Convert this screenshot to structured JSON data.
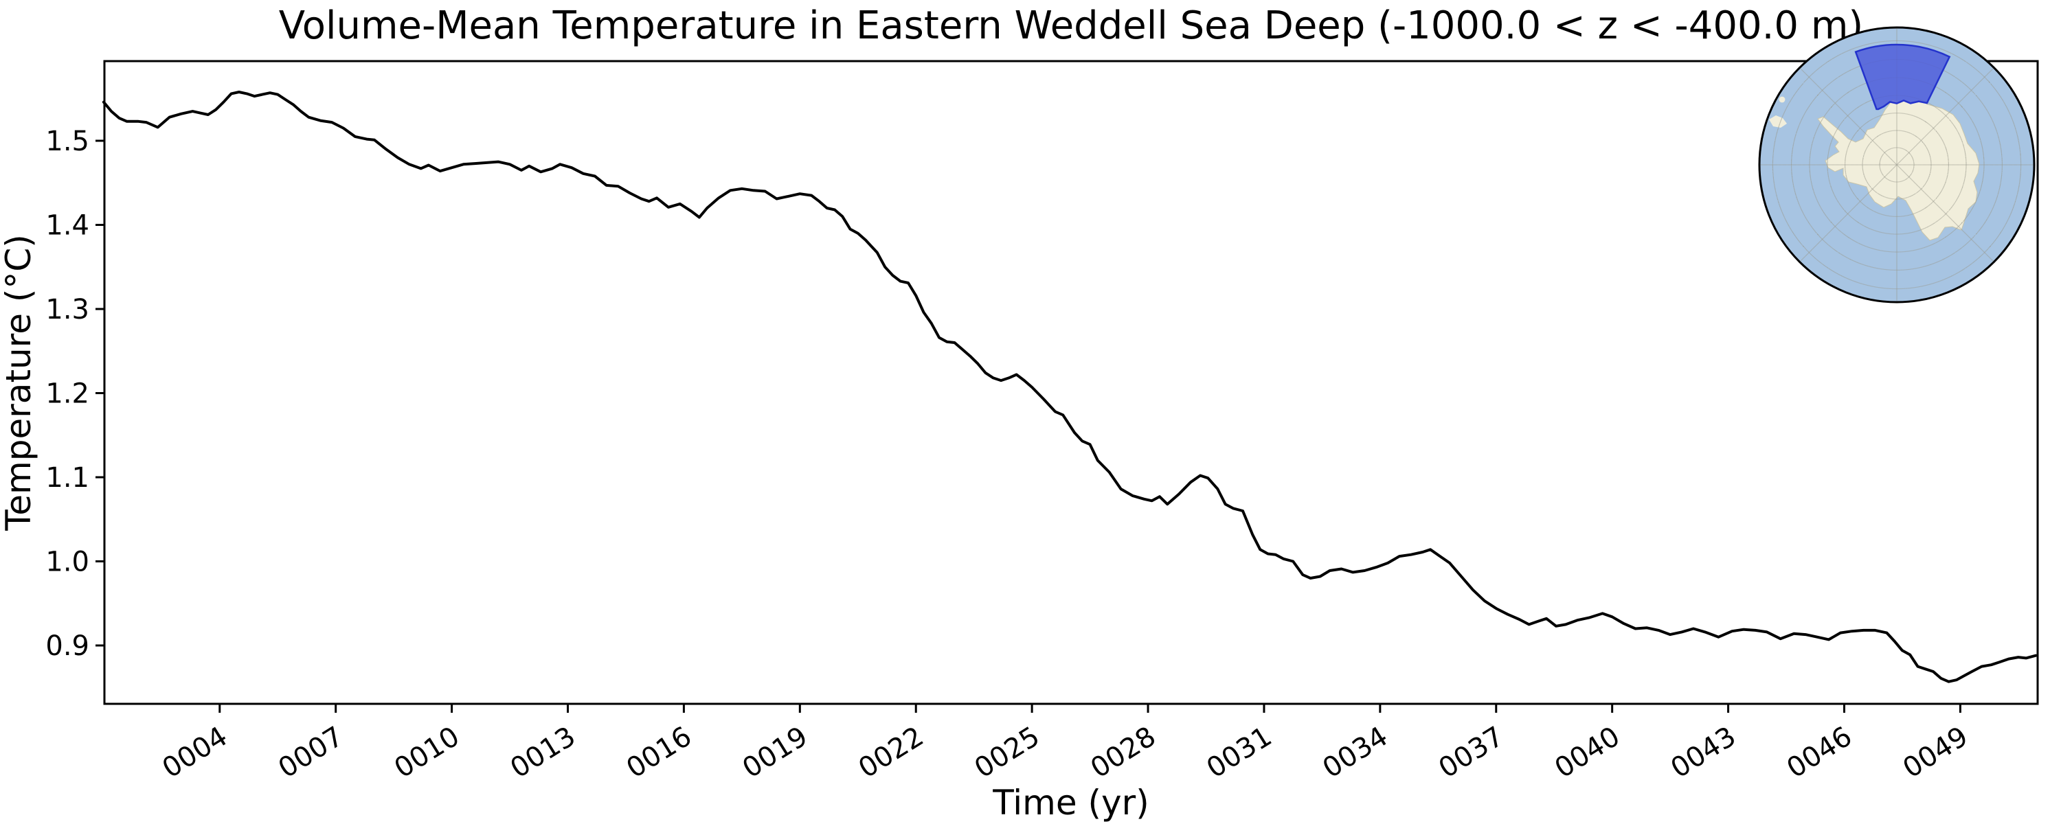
{
  "figure": {
    "background": "#ffffff"
  },
  "chart_data": {
    "type": "line",
    "title": "Volume-Mean Temperature in Eastern Weddell Sea Deep (-1000.0 < z < -400.0 m)",
    "xlabel": "Time (yr)",
    "ylabel": "Temperature (°C)",
    "xlim": [
      1.02,
      51.0
    ],
    "ylim": [
      0.8306,
      1.5947
    ],
    "grid": false,
    "legend": "none",
    "line_color": "#000000",
    "line_width": 4,
    "x_ticks": [
      {
        "value": 4,
        "label": "0004"
      },
      {
        "value": 7,
        "label": "0007"
      },
      {
        "value": 10,
        "label": "0010"
      },
      {
        "value": 13,
        "label": "0013"
      },
      {
        "value": 16,
        "label": "0016"
      },
      {
        "value": 19,
        "label": "0019"
      },
      {
        "value": 22,
        "label": "0022"
      },
      {
        "value": 25,
        "label": "0025"
      },
      {
        "value": 28,
        "label": "0028"
      },
      {
        "value": 31,
        "label": "0031"
      },
      {
        "value": 34,
        "label": "0034"
      },
      {
        "value": 37,
        "label": "0037"
      },
      {
        "value": 40,
        "label": "0040"
      },
      {
        "value": 43,
        "label": "0043"
      },
      {
        "value": 46,
        "label": "0046"
      },
      {
        "value": 49,
        "label": "0049"
      }
    ],
    "y_ticks": [
      {
        "value": 0.9,
        "label": "0.9"
      },
      {
        "value": 1.0,
        "label": "1.0"
      },
      {
        "value": 1.1,
        "label": "1.1"
      },
      {
        "value": 1.2,
        "label": "1.2"
      },
      {
        "value": 1.3,
        "label": "1.3"
      },
      {
        "value": 1.4,
        "label": "1.4"
      },
      {
        "value": 1.5,
        "label": "1.5"
      }
    ],
    "series": [
      {
        "name": "volume-mean temperature",
        "points": [
          [
            1.0,
            1.546
          ],
          [
            1.2,
            1.535
          ],
          [
            1.4,
            1.527
          ],
          [
            1.6,
            1.523
          ],
          [
            1.9,
            1.523
          ],
          [
            2.1,
            1.522
          ],
          [
            2.4,
            1.516
          ],
          [
            2.7,
            1.528
          ],
          [
            3.0,
            1.532
          ],
          [
            3.3,
            1.535
          ],
          [
            3.5,
            1.533
          ],
          [
            3.7,
            1.531
          ],
          [
            3.9,
            1.537
          ],
          [
            4.1,
            1.546
          ],
          [
            4.3,
            1.556
          ],
          [
            4.5,
            1.558
          ],
          [
            4.7,
            1.556
          ],
          [
            4.9,
            1.553
          ],
          [
            5.1,
            1.555
          ],
          [
            5.3,
            1.557
          ],
          [
            5.5,
            1.555
          ],
          [
            5.7,
            1.549
          ],
          [
            5.9,
            1.543
          ],
          [
            6.1,
            1.535
          ],
          [
            6.3,
            1.528
          ],
          [
            6.6,
            1.524
          ],
          [
            6.9,
            1.522
          ],
          [
            7.2,
            1.515
          ],
          [
            7.5,
            1.505
          ],
          [
            7.8,
            1.502
          ],
          [
            8.0,
            1.501
          ],
          [
            8.3,
            1.49
          ],
          [
            8.6,
            1.48
          ],
          [
            8.9,
            1.472
          ],
          [
            9.2,
            1.467
          ],
          [
            9.4,
            1.471
          ],
          [
            9.7,
            1.464
          ],
          [
            10.0,
            1.468
          ],
          [
            10.3,
            1.472
          ],
          [
            10.6,
            1.473
          ],
          [
            10.9,
            1.474
          ],
          [
            11.2,
            1.475
          ],
          [
            11.5,
            1.472
          ],
          [
            11.8,
            1.465
          ],
          [
            12.0,
            1.47
          ],
          [
            12.3,
            1.463
          ],
          [
            12.6,
            1.467
          ],
          [
            12.8,
            1.472
          ],
          [
            13.1,
            1.468
          ],
          [
            13.4,
            1.461
          ],
          [
            13.7,
            1.458
          ],
          [
            14.0,
            1.447
          ],
          [
            14.3,
            1.446
          ],
          [
            14.6,
            1.438
          ],
          [
            14.9,
            1.431
          ],
          [
            15.1,
            1.428
          ],
          [
            15.3,
            1.432
          ],
          [
            15.6,
            1.421
          ],
          [
            15.9,
            1.425
          ],
          [
            16.2,
            1.416
          ],
          [
            16.4,
            1.409
          ],
          [
            16.6,
            1.42
          ],
          [
            16.9,
            1.432
          ],
          [
            17.2,
            1.441
          ],
          [
            17.5,
            1.443
          ],
          [
            17.8,
            1.441
          ],
          [
            18.1,
            1.44
          ],
          [
            18.4,
            1.431
          ],
          [
            18.7,
            1.434
          ],
          [
            19.0,
            1.437
          ],
          [
            19.3,
            1.435
          ],
          [
            19.5,
            1.428
          ],
          [
            19.7,
            1.42
          ],
          [
            19.9,
            1.418
          ],
          [
            20.1,
            1.41
          ],
          [
            20.3,
            1.395
          ],
          [
            20.5,
            1.39
          ],
          [
            20.7,
            1.382
          ],
          [
            21.0,
            1.367
          ],
          [
            21.2,
            1.35
          ],
          [
            21.4,
            1.34
          ],
          [
            21.6,
            1.333
          ],
          [
            21.8,
            1.331
          ],
          [
            22.0,
            1.316
          ],
          [
            22.2,
            1.296
          ],
          [
            22.4,
            1.283
          ],
          [
            22.6,
            1.266
          ],
          [
            22.8,
            1.261
          ],
          [
            23.0,
            1.26
          ],
          [
            23.2,
            1.252
          ],
          [
            23.4,
            1.244
          ],
          [
            23.6,
            1.235
          ],
          [
            23.8,
            1.224
          ],
          [
            24.0,
            1.218
          ],
          [
            24.2,
            1.215
          ],
          [
            24.4,
            1.218
          ],
          [
            24.6,
            1.222
          ],
          [
            24.8,
            1.215
          ],
          [
            25.0,
            1.207
          ],
          [
            25.3,
            1.193
          ],
          [
            25.6,
            1.178
          ],
          [
            25.8,
            1.174
          ],
          [
            26.1,
            1.153
          ],
          [
            26.3,
            1.143
          ],
          [
            26.5,
            1.139
          ],
          [
            26.7,
            1.12
          ],
          [
            27.0,
            1.106
          ],
          [
            27.3,
            1.086
          ],
          [
            27.6,
            1.078
          ],
          [
            27.9,
            1.074
          ],
          [
            28.1,
            1.072
          ],
          [
            28.3,
            1.077
          ],
          [
            28.5,
            1.068
          ],
          [
            28.8,
            1.08
          ],
          [
            29.1,
            1.094
          ],
          [
            29.35,
            1.102
          ],
          [
            29.55,
            1.099
          ],
          [
            29.8,
            1.086
          ],
          [
            30.0,
            1.068
          ],
          [
            30.2,
            1.063
          ],
          [
            30.45,
            1.06
          ],
          [
            30.7,
            1.032
          ],
          [
            30.9,
            1.014
          ],
          [
            31.1,
            1.009
          ],
          [
            31.3,
            1.008
          ],
          [
            31.5,
            1.003
          ],
          [
            31.75,
            1.0
          ],
          [
            32.0,
            0.984
          ],
          [
            32.2,
            0.98
          ],
          [
            32.45,
            0.982
          ],
          [
            32.7,
            0.989
          ],
          [
            33.0,
            0.991
          ],
          [
            33.3,
            0.987
          ],
          [
            33.6,
            0.989
          ],
          [
            33.9,
            0.993
          ],
          [
            34.2,
            0.998
          ],
          [
            34.5,
            1.006
          ],
          [
            34.8,
            1.008
          ],
          [
            35.1,
            1.011
          ],
          [
            35.3,
            1.014
          ],
          [
            35.55,
            1.006
          ],
          [
            35.8,
            0.998
          ],
          [
            36.1,
            0.982
          ],
          [
            36.4,
            0.966
          ],
          [
            36.7,
            0.953
          ],
          [
            37.0,
            0.944
          ],
          [
            37.3,
            0.937
          ],
          [
            37.6,
            0.931
          ],
          [
            37.85,
            0.925
          ],
          [
            38.1,
            0.929
          ],
          [
            38.3,
            0.932
          ],
          [
            38.55,
            0.923
          ],
          [
            38.8,
            0.925
          ],
          [
            39.1,
            0.93
          ],
          [
            39.4,
            0.933
          ],
          [
            39.75,
            0.938
          ],
          [
            40.0,
            0.934
          ],
          [
            40.3,
            0.926
          ],
          [
            40.6,
            0.92
          ],
          [
            40.9,
            0.921
          ],
          [
            41.2,
            0.918
          ],
          [
            41.5,
            0.913
          ],
          [
            41.8,
            0.916
          ],
          [
            42.1,
            0.92
          ],
          [
            42.4,
            0.916
          ],
          [
            42.75,
            0.91
          ],
          [
            43.1,
            0.917
          ],
          [
            43.4,
            0.919
          ],
          [
            43.7,
            0.918
          ],
          [
            44.0,
            0.916
          ],
          [
            44.35,
            0.908
          ],
          [
            44.7,
            0.914
          ],
          [
            45.0,
            0.913
          ],
          [
            45.3,
            0.91
          ],
          [
            45.6,
            0.907
          ],
          [
            45.9,
            0.915
          ],
          [
            46.2,
            0.917
          ],
          [
            46.5,
            0.918
          ],
          [
            46.8,
            0.918
          ],
          [
            47.1,
            0.915
          ],
          [
            47.3,
            0.905
          ],
          [
            47.5,
            0.894
          ],
          [
            47.7,
            0.889
          ],
          [
            47.9,
            0.875
          ],
          [
            48.1,
            0.872
          ],
          [
            48.3,
            0.869
          ],
          [
            48.5,
            0.861
          ],
          [
            48.7,
            0.857
          ],
          [
            48.9,
            0.859
          ],
          [
            49.1,
            0.864
          ],
          [
            49.3,
            0.869
          ],
          [
            49.55,
            0.875
          ],
          [
            49.8,
            0.877
          ],
          [
            50.0,
            0.88
          ],
          [
            50.25,
            0.884
          ],
          [
            50.5,
            0.886
          ],
          [
            50.7,
            0.885
          ],
          [
            50.95,
            0.888
          ]
        ]
      }
    ]
  },
  "inset_map": {
    "description": "South polar stereographic map of Antarctica with highlighted sector over the Eastern Weddell Sea",
    "region_label": "Eastern Weddell Sea",
    "colors": {
      "ocean": "#a7c4e2",
      "land": "#f1eedb",
      "land_edge": "#c9c5aa",
      "region_fill": "#4c5ada",
      "region_edge": "#2433cc",
      "graticule": "#98988c",
      "rim": "#000000"
    }
  }
}
